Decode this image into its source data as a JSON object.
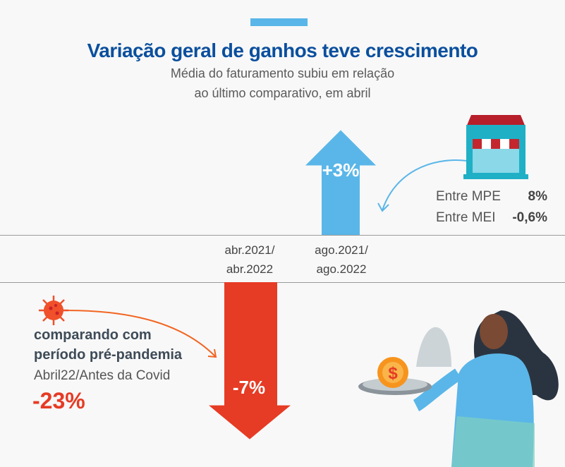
{
  "header": {
    "title": "Variação geral de ganhos teve crescimento",
    "subtitle_line1": "Média do faturamento subiu em relação",
    "subtitle_line2": "ao último comparativo, em abril"
  },
  "chart_data": {
    "type": "bar",
    "categories": [
      "abr.2021/ abr.2022",
      "ago.2021/ ago.2022"
    ],
    "values": [
      -7,
      3
    ],
    "value_labels": [
      "-7%",
      "+3%"
    ],
    "category_lines": [
      [
        "abr.2021/",
        "abr.2022"
      ],
      [
        "ago.2021/",
        "ago.2022"
      ]
    ],
    "colors": [
      "#e63b24",
      "#5ab6e8"
    ],
    "title": "Variação geral de ganhos teve crescimento",
    "xlabel": "",
    "ylabel": "",
    "unit": "%"
  },
  "breakdown": {
    "rows": [
      {
        "label": "Entre MPE",
        "value": "8%"
      },
      {
        "label": "Entre MEI",
        "value": "-0,6%"
      }
    ]
  },
  "pandemic": {
    "line1": "comparando com",
    "line2": "período pré-pandemia",
    "line3": "Abril22/Antes da Covid",
    "value": "-23%"
  },
  "colors": {
    "title": "#0b4f9e",
    "positive": "#5ab6e8",
    "negative": "#e63b24"
  }
}
